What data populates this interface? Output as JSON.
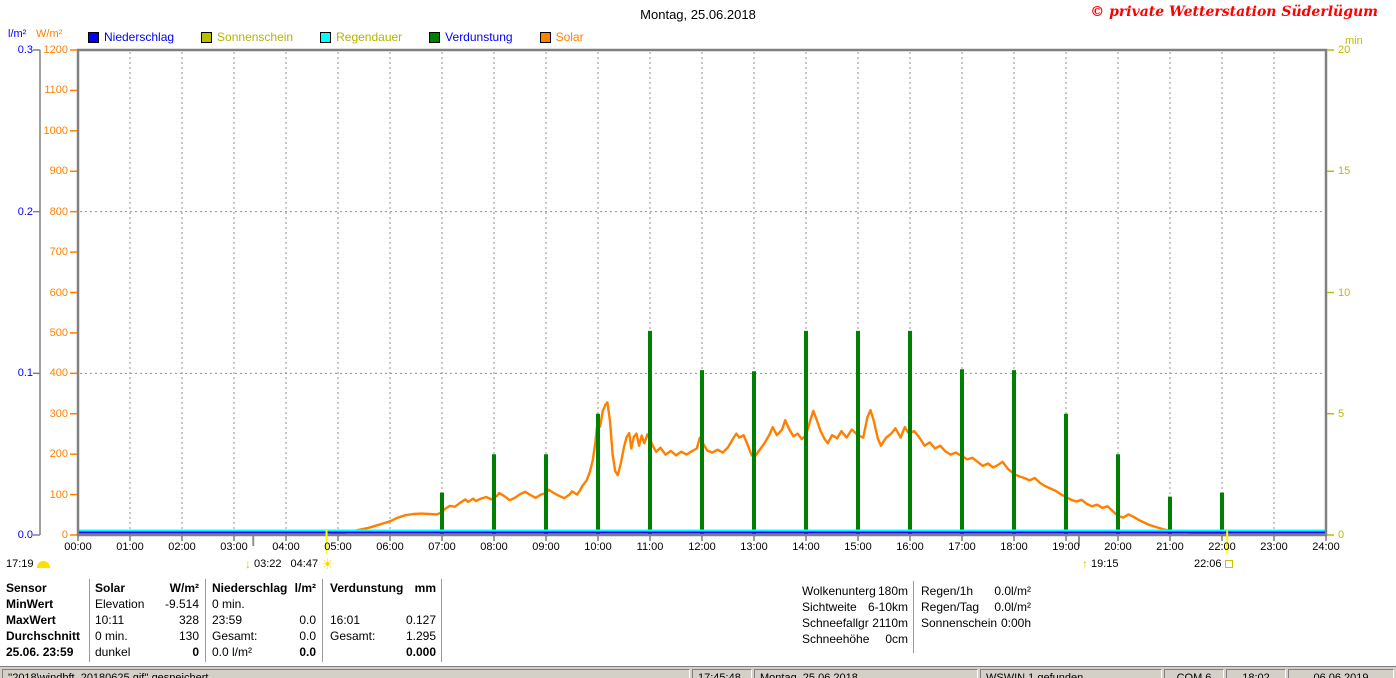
{
  "window": {
    "title": "Montag, 25.06.2018",
    "copyright": "© private Wetterstation Süderlügum"
  },
  "axes": {
    "left_primary_unit": "l/m²",
    "left_secondary_unit": "W/m²",
    "right_unit": "min"
  },
  "legend": [
    {
      "label": "Niederschlag",
      "box_color": "#0000ff",
      "label_color": "#0000ff"
    },
    {
      "label": "Sonnenschein",
      "box_color": "#bcbc00",
      "label_color": "#b4b400"
    },
    {
      "label": "Regendauer",
      "box_color": "#00ffff",
      "label_color": "#b4b400"
    },
    {
      "label": "Verdunstung",
      "box_color": "#008000",
      "label_color": "#0000ff"
    },
    {
      "label": "Solar",
      "box_color": "#ff8000",
      "label_color": "#ff8000"
    }
  ],
  "astro": {
    "moon_time": "17:19",
    "arrow_down_time": "03:22",
    "sun_time": "04:47",
    "arrow_up_time": "19:15",
    "square_time": "22:06"
  },
  "chart_data": {
    "type": "line",
    "title": "Montag, 25.06.2018",
    "x_range_hours": [
      0,
      24
    ],
    "x_tick_labels": [
      "00:00",
      "01:00",
      "02:00",
      "03:00",
      "04:00",
      "05:00",
      "06:00",
      "07:00",
      "08:00",
      "09:00",
      "10:00",
      "11:00",
      "12:00",
      "13:00",
      "14:00",
      "15:00",
      "16:00",
      "17:00",
      "18:00",
      "19:00",
      "20:00",
      "21:00",
      "22:00",
      "23:00",
      "24:00"
    ],
    "axes": [
      {
        "id": "precip",
        "label": "l/m²",
        "side": "left",
        "range": [
          0,
          0.3
        ],
        "tick_labels": [
          "0.0",
          "0.1",
          "0.2",
          "0.3"
        ],
        "color": "#0000ff"
      },
      {
        "id": "power",
        "label": "W/m²",
        "side": "left",
        "range": [
          0,
          1200
        ],
        "tick_labels": [
          "0",
          "100",
          "200",
          "300",
          "400",
          "500",
          "600",
          "700",
          "800",
          "900",
          "1000",
          "1100",
          "1200"
        ],
        "color": "#ff8000"
      },
      {
        "id": "minutes",
        "label": "min",
        "side": "right",
        "range": [
          0,
          20
        ],
        "tick_labels": [
          "0",
          "5",
          "10",
          "15",
          "20"
        ],
        "color": "#bcbc00"
      }
    ],
    "gridlines": {
      "vertical_every_hour": true,
      "horizontal_at_power": [
        400,
        800
      ]
    },
    "series": {
      "niederschlag": {
        "name": "Niederschlag",
        "color": "#0000ff",
        "axis": "l/m²",
        "style": "line",
        "constant": 0
      },
      "regendauer": {
        "name": "Regendauer",
        "color": "#00ffff",
        "axis": "min",
        "style": "line",
        "constant": 0
      },
      "sonnenschein": {
        "name": "Sonnenschein",
        "color": "#bcbc00",
        "axis": "min",
        "style": "line",
        "constant": 0
      },
      "verdunstung": {
        "name": "Verdunstung",
        "color": "#008000",
        "axis": "W/m²",
        "style": "vertical-spikes",
        "points": [
          [
            7,
            105
          ],
          [
            8,
            200
          ],
          [
            9,
            200
          ],
          [
            10,
            300
          ],
          [
            11,
            505
          ],
          [
            12,
            408
          ],
          [
            13,
            405
          ],
          [
            14,
            505
          ],
          [
            15,
            505
          ],
          [
            16,
            505
          ],
          [
            17,
            410
          ],
          [
            18,
            408
          ],
          [
            19,
            300
          ],
          [
            20,
            200
          ],
          [
            21,
            95
          ],
          [
            22,
            105
          ]
        ]
      },
      "solar": {
        "name": "Solar",
        "color": "#ff8000",
        "axis": "W/m²",
        "style": "line",
        "points": [
          [
            4.85,
            1
          ],
          [
            5.0,
            3
          ],
          [
            5.15,
            6
          ],
          [
            5.3,
            10
          ],
          [
            5.45,
            14
          ],
          [
            5.6,
            18
          ],
          [
            5.75,
            24
          ],
          [
            5.9,
            30
          ],
          [
            6.0,
            34
          ],
          [
            6.1,
            40
          ],
          [
            6.2,
            45
          ],
          [
            6.3,
            49
          ],
          [
            6.45,
            52
          ],
          [
            6.6,
            53
          ],
          [
            6.75,
            52
          ],
          [
            6.9,
            51
          ],
          [
            7.0,
            56
          ],
          [
            7.05,
            64
          ],
          [
            7.15,
            72
          ],
          [
            7.25,
            70
          ],
          [
            7.35,
            80
          ],
          [
            7.45,
            88
          ],
          [
            7.5,
            82
          ],
          [
            7.6,
            90
          ],
          [
            7.65,
            84
          ],
          [
            7.75,
            90
          ],
          [
            7.85,
            94
          ],
          [
            7.95,
            88
          ],
          [
            8.05,
            96
          ],
          [
            8.1,
            104
          ],
          [
            8.2,
            96
          ],
          [
            8.3,
            86
          ],
          [
            8.4,
            92
          ],
          [
            8.5,
            101
          ],
          [
            8.6,
            107
          ],
          [
            8.7,
            99
          ],
          [
            8.8,
            92
          ],
          [
            8.9,
            100
          ],
          [
            9.0,
            104
          ],
          [
            9.05,
            112
          ],
          [
            9.15,
            104
          ],
          [
            9.25,
            97
          ],
          [
            9.35,
            91
          ],
          [
            9.45,
            100
          ],
          [
            9.5,
            108
          ],
          [
            9.6,
            100
          ],
          [
            9.65,
            110
          ],
          [
            9.7,
            121
          ],
          [
            9.78,
            135
          ],
          [
            9.84,
            155
          ],
          [
            9.9,
            185
          ],
          [
            9.95,
            230
          ],
          [
            10.0,
            290
          ],
          [
            10.04,
            268
          ],
          [
            10.09,
            306
          ],
          [
            10.14,
            322
          ],
          [
            10.18,
            328
          ],
          [
            10.23,
            282
          ],
          [
            10.28,
            200
          ],
          [
            10.33,
            158
          ],
          [
            10.38,
            148
          ],
          [
            10.44,
            178
          ],
          [
            10.5,
            218
          ],
          [
            10.55,
            242
          ],
          [
            10.6,
            252
          ],
          [
            10.64,
            214
          ],
          [
            10.69,
            243
          ],
          [
            10.74,
            251
          ],
          [
            10.79,
            221
          ],
          [
            10.84,
            246
          ],
          [
            10.89,
            227
          ],
          [
            10.95,
            249
          ],
          [
            11.0,
            237
          ],
          [
            11.06,
            219
          ],
          [
            11.12,
            206
          ],
          [
            11.2,
            216
          ],
          [
            11.3,
            199
          ],
          [
            11.4,
            208
          ],
          [
            11.5,
            197
          ],
          [
            11.6,
            206
          ],
          [
            11.7,
            199
          ],
          [
            11.8,
            207
          ],
          [
            11.9,
            214
          ],
          [
            11.96,
            241
          ],
          [
            12.02,
            227
          ],
          [
            12.1,
            209
          ],
          [
            12.2,
            204
          ],
          [
            12.3,
            211
          ],
          [
            12.4,
            204
          ],
          [
            12.5,
            217
          ],
          [
            12.6,
            239
          ],
          [
            12.66,
            251
          ],
          [
            12.72,
            241
          ],
          [
            12.8,
            247
          ],
          [
            12.86,
            229
          ],
          [
            12.95,
            199
          ],
          [
            13.0,
            191
          ],
          [
            13.1,
            209
          ],
          [
            13.2,
            227
          ],
          [
            13.3,
            249
          ],
          [
            13.36,
            267
          ],
          [
            13.44,
            247
          ],
          [
            13.54,
            261
          ],
          [
            13.6,
            284
          ],
          [
            13.68,
            261
          ],
          [
            13.76,
            244
          ],
          [
            13.84,
            251
          ],
          [
            13.92,
            237
          ],
          [
            14.0,
            247
          ],
          [
            14.08,
            283
          ],
          [
            14.14,
            307
          ],
          [
            14.2,
            287
          ],
          [
            14.28,
            257
          ],
          [
            14.36,
            237
          ],
          [
            14.42,
            227
          ],
          [
            14.5,
            247
          ],
          [
            14.6,
            239
          ],
          [
            14.68,
            257
          ],
          [
            14.78,
            241
          ],
          [
            14.88,
            261
          ],
          [
            15.0,
            247
          ],
          [
            15.1,
            241
          ],
          [
            15.18,
            291
          ],
          [
            15.24,
            309
          ],
          [
            15.3,
            284
          ],
          [
            15.38,
            239
          ],
          [
            15.44,
            221
          ],
          [
            15.54,
            241
          ],
          [
            15.64,
            251
          ],
          [
            15.72,
            264
          ],
          [
            15.82,
            241
          ],
          [
            15.9,
            267
          ],
          [
            15.98,
            251
          ],
          [
            16.08,
            257
          ],
          [
            16.18,
            241
          ],
          [
            16.28,
            221
          ],
          [
            16.38,
            229
          ],
          [
            16.48,
            214
          ],
          [
            16.58,
            221
          ],
          [
            16.68,
            207
          ],
          [
            16.78,
            199
          ],
          [
            16.88,
            204
          ],
          [
            17.0,
            195
          ],
          [
            17.1,
            187
          ],
          [
            17.2,
            191
          ],
          [
            17.3,
            181
          ],
          [
            17.4,
            171
          ],
          [
            17.5,
            177
          ],
          [
            17.6,
            167
          ],
          [
            17.7,
            174
          ],
          [
            17.78,
            181
          ],
          [
            17.88,
            164
          ],
          [
            18.0,
            151
          ],
          [
            18.1,
            145
          ],
          [
            18.2,
            141
          ],
          [
            18.3,
            135
          ],
          [
            18.4,
            141
          ],
          [
            18.5,
            129
          ],
          [
            18.6,
            121
          ],
          [
            18.7,
            115
          ],
          [
            18.8,
            109
          ],
          [
            18.9,
            101
          ],
          [
            19.0,
            94
          ],
          [
            19.1,
            87
          ],
          [
            19.2,
            83
          ],
          [
            19.3,
            87
          ],
          [
            19.4,
            77
          ],
          [
            19.5,
            71
          ],
          [
            19.6,
            75
          ],
          [
            19.7,
            67
          ],
          [
            19.8,
            71
          ],
          [
            19.9,
            59
          ],
          [
            20.0,
            47
          ],
          [
            20.1,
            43
          ],
          [
            20.2,
            51
          ],
          [
            20.3,
            45
          ],
          [
            20.4,
            37
          ],
          [
            20.5,
            31
          ],
          [
            20.6,
            25
          ],
          [
            20.7,
            21
          ],
          [
            20.8,
            17
          ],
          [
            20.9,
            13
          ],
          [
            21.0,
            11
          ],
          [
            21.15,
            9
          ],
          [
            21.3,
            7
          ],
          [
            21.45,
            5
          ],
          [
            21.6,
            3
          ],
          [
            21.75,
            2
          ],
          [
            21.9,
            1
          ],
          [
            22.05,
            0
          ],
          [
            22.15,
            0
          ]
        ]
      }
    },
    "axis_marks": [
      {
        "time_label": "03:22",
        "hour": 3.37,
        "style": "gray-tick"
      },
      {
        "time_label": "04:47",
        "hour": 4.78,
        "style": "yellow-line"
      },
      {
        "time_label": "19:15",
        "hour": 19.25,
        "style": "gray-tick"
      },
      {
        "time_label": "22:06",
        "hour": 22.1,
        "style": "yellow-line"
      }
    ]
  },
  "summary": {
    "row_labels": [
      "Sensor",
      "MinWert",
      "MaxWert",
      "Durchschnitt",
      "25.06. 23:59"
    ],
    "solar": {
      "header": "Solar",
      "unit": "W/m²",
      "rows": [
        [
          "Elevation",
          "-9.514"
        ],
        [
          "10:11",
          "328"
        ],
        [
          "0 min.",
          "130"
        ],
        [
          "dunkel",
          "0"
        ]
      ]
    },
    "niederschlag": {
      "header": "Niederschlag",
      "unit": "l/m²",
      "rows": [
        [
          "0 min.",
          ""
        ],
        [
          "23:59",
          "0.0"
        ],
        [
          "Gesamt:",
          "0.0"
        ],
        [
          "0.0 l/m²",
          "0.0"
        ]
      ]
    },
    "verdunstung": {
      "header": "Verdunstung",
      "unit": "mm",
      "rows": [
        [
          "",
          ""
        ],
        [
          "16:01",
          "0.127"
        ],
        [
          "Gesamt:",
          "1.295"
        ],
        [
          "",
          "0.000"
        ]
      ]
    },
    "conditions": [
      [
        "Wolkenunterg",
        "180m"
      ],
      [
        "Sichtweite",
        "6-10km"
      ],
      [
        "Schneefallgr",
        "2110m"
      ],
      [
        "Schneehöhe",
        "0cm"
      ]
    ],
    "rain": [
      [
        "Regen/1h",
        "0.0l/m²"
      ],
      [
        "Regen/Tag",
        "0.0l/m²"
      ],
      [
        "Sonnenschein",
        "0:00h"
      ]
    ]
  },
  "status_bar": {
    "segments": [
      "''2018\\windbft_20180625.gif'' gespeichert",
      "17:45:48",
      "Montag, 25.06.2018",
      "WSWIN 1 gefunden",
      "COM 6",
      "18:02",
      "06.06.2019"
    ]
  }
}
